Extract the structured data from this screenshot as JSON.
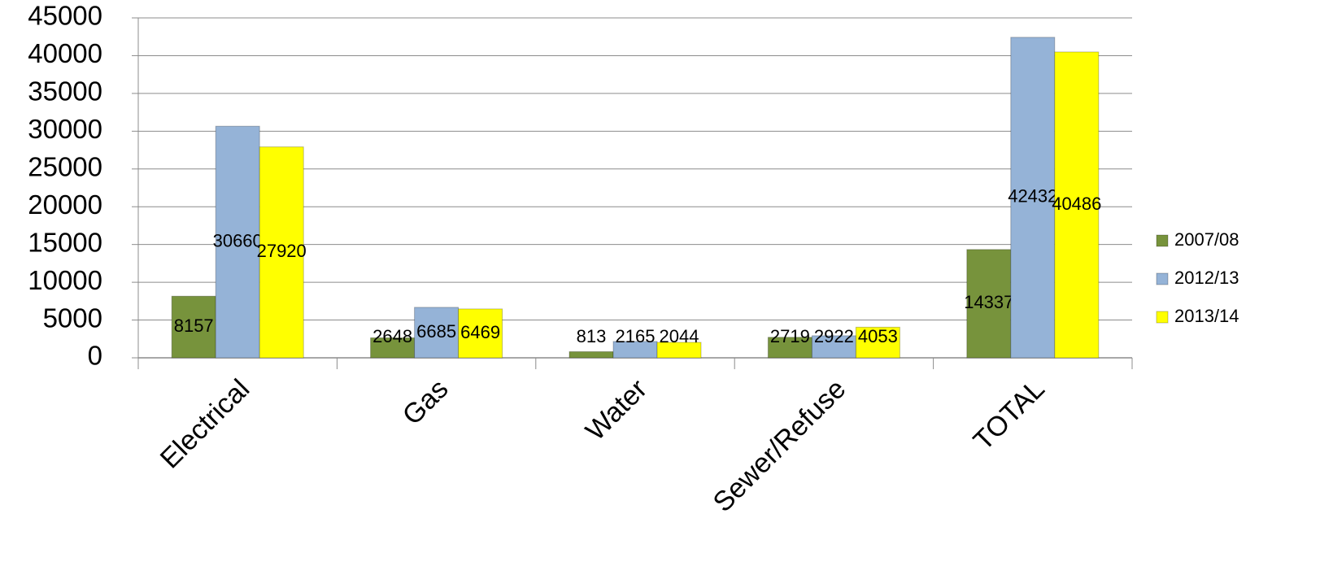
{
  "chart_data": {
    "type": "bar",
    "categories": [
      "Electrical",
      "Gas",
      "Water",
      "Sewer/Refuse",
      "TOTAL"
    ],
    "series": [
      {
        "name": "2007/08",
        "color": "#77933c",
        "values": [
          8157,
          2648,
          813,
          2719,
          14337
        ]
      },
      {
        "name": "2012/13",
        "color": "#95b3d7",
        "values": [
          30660,
          6685,
          2165,
          2922,
          42432
        ]
      },
      {
        "name": "2013/14",
        "color": "#ffff00",
        "values": [
          27920,
          6469,
          2044,
          4053,
          40486
        ]
      }
    ],
    "ylim": [
      0,
      45000
    ],
    "yticks": [
      0,
      5000,
      10000,
      15000,
      20000,
      25000,
      30000,
      35000,
      40000,
      45000
    ],
    "grid": true,
    "legend": "right"
  }
}
